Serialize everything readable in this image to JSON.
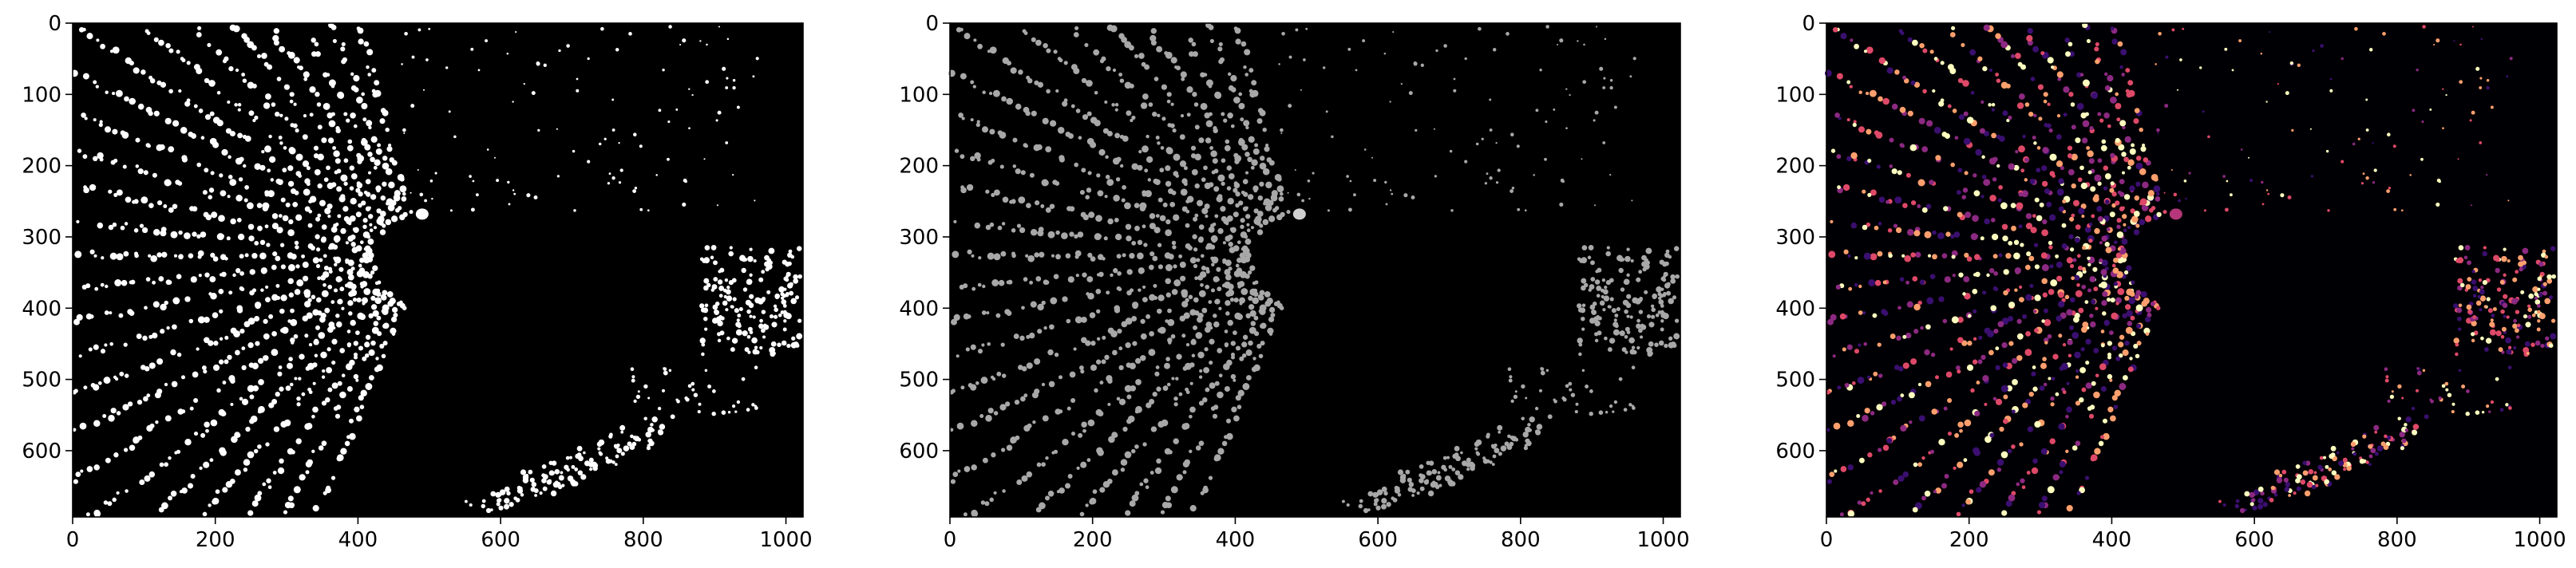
{
  "figure": {
    "layout": "three side-by-side image panels",
    "background": "#ffffff"
  },
  "chart_data": [
    {
      "type": "heatmap",
      "panel": 1,
      "colormap": "binary (white spots on black)",
      "background_color": "#000000",
      "spot_color": "#ffffff",
      "image_shape": [
        693,
        1024
      ],
      "xlim": [
        0,
        1024
      ],
      "ylim": [
        693,
        0
      ],
      "x_ticks": [
        0,
        200,
        400,
        600,
        800,
        1000
      ],
      "y_ticks": [
        0,
        100,
        200,
        300,
        400,
        500,
        600
      ],
      "grid": false,
      "title": "",
      "xlabel": "",
      "ylabel": ""
    },
    {
      "type": "heatmap",
      "panel": 2,
      "colormap": "gray",
      "background_color": "#000000",
      "spot_color": "#a8a8a8",
      "image_shape": [
        693,
        1024
      ],
      "xlim": [
        0,
        1024
      ],
      "ylim": [
        693,
        0
      ],
      "x_ticks": [
        0,
        200,
        400,
        600,
        800,
        1000
      ],
      "y_ticks": [
        0,
        100,
        200,
        300,
        400,
        500,
        600
      ],
      "grid": false,
      "title": "",
      "xlabel": "",
      "ylabel": ""
    },
    {
      "type": "heatmap",
      "panel": 3,
      "colormap": "magma",
      "background_color": "#000004",
      "spot_colors": [
        "#3b0f70",
        "#8c2981",
        "#de4968",
        "#fe9f6d",
        "#fcfdbf"
      ],
      "image_shape": [
        693,
        1024
      ],
      "xlim": [
        0,
        1024
      ],
      "ylim": [
        693,
        0
      ],
      "x_ticks": [
        0,
        200,
        400,
        600,
        800,
        1000
      ],
      "y_ticks": [
        0,
        100,
        200,
        300,
        400,
        500,
        600
      ],
      "grid": false,
      "title": "",
      "xlabel": "",
      "ylabel": ""
    }
  ]
}
